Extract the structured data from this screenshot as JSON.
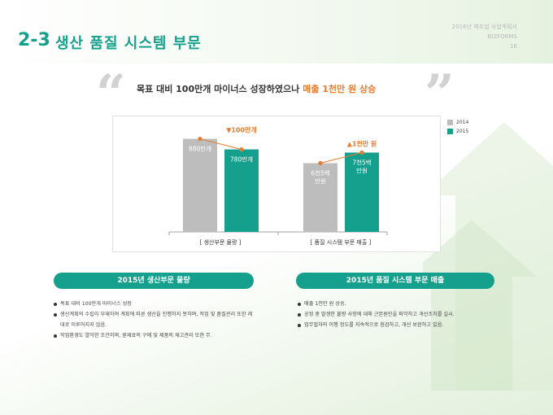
{
  "header": {
    "section_number": "2-3",
    "section_title": "생산 품질 시스템 부문",
    "doc_title": "2016년 제조업 사업계획서",
    "brand": "BIZFORMS",
    "page_number": "16"
  },
  "headline": {
    "main": "목표 대비 100만개 마이너스 성장하였으나",
    "highlight": "매출 1천만 원 상승"
  },
  "chart_data": {
    "type": "bar",
    "categories": [
      "[ 생산부문 물량 ]",
      "[ 품질 시스템 부문 매출 ]"
    ],
    "series": [
      {
        "name": "2014",
        "values": [
          880,
          650
        ],
        "data_labels": [
          "880만개",
          "6천5백\n만원"
        ]
      },
      {
        "name": "2015",
        "values": [
          780,
          750
        ],
        "data_labels": [
          "780만개",
          "7천5백\n만원"
        ]
      }
    ],
    "annotations": [
      "▼100만개",
      "▲1천만 원"
    ],
    "colors": {
      "2014": "#bdbdbd",
      "2015": "#14a08c",
      "marker": "#e67a2e"
    },
    "legend_position": "right",
    "grid": false
  },
  "left_panel": {
    "title": "2015년 생산부문 물량",
    "bullets": [
      "목표 대비 100만개 마이너스 성장",
      "생산계획의 수립이 부재하여 계획에 따른 생산을 진행하지 못하며, 작업 및 품질관리 또한 제대로 이루어지지 않음.",
      "작업환경도 열악한 조건이며, 원재료의 구매 및 제품의 재고관리 또한 무."
    ]
  },
  "right_panel": {
    "title": "2015년 품질 시스템 부문 매출",
    "bullets": [
      "매출 1천만 원 상승.",
      "공정 중 발생한 불량 사항에 대해 근본원인을 파악하고 개선조치를 실시.",
      "업무절차의 이행 정도를 지속적으로 점검하고, 개선 보완하고 있음."
    ]
  }
}
